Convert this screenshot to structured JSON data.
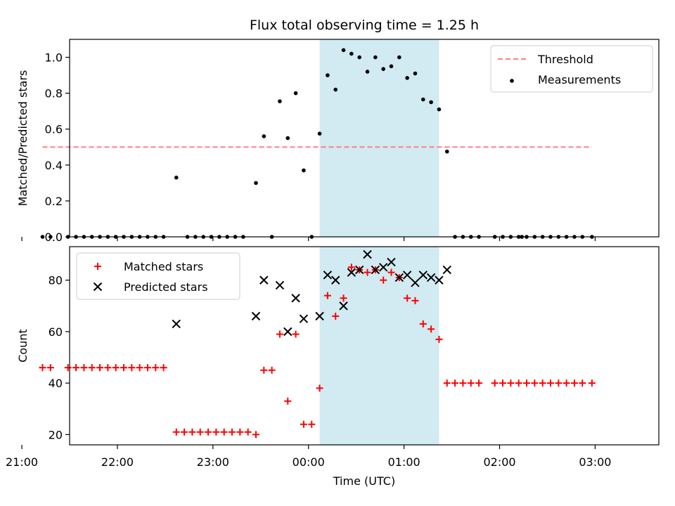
{
  "chart_data": {
    "title": "Flux total observing time = 1.25 h",
    "xlabel": "Time (UTC)",
    "x_tick_labels": [
      "21:00",
      "22:00",
      "23:00",
      "00:00",
      "01:00",
      "02:00",
      "03:00"
    ],
    "highlight_window": {
      "start": "00:07",
      "end": "01:22",
      "color": "#add8e6"
    },
    "panels": [
      {
        "type": "scatter",
        "ylabel": "Matched/Predicted stars",
        "ylim": [
          0,
          1.1
        ],
        "yticks": [
          "0.0",
          "0.2",
          "0.4",
          "0.6",
          "0.8",
          "1.0"
        ],
        "legend_position": "top-right",
        "series": [
          {
            "name": "Threshold",
            "style": "dashed-line",
            "color": "#ff8080",
            "y": 0.5,
            "x_start": "21:13",
            "x_end": "02:58"
          },
          {
            "name": "Measurements",
            "style": "dot",
            "color": "#000000",
            "points": [
              [
                "21:13",
                0
              ],
              [
                "21:18",
                0
              ],
              [
                "21:29",
                0
              ],
              [
                "21:34",
                0
              ],
              [
                "21:39",
                0
              ],
              [
                "21:44",
                0
              ],
              [
                "21:49",
                0
              ],
              [
                "21:54",
                0
              ],
              [
                "21:59",
                0
              ],
              [
                "22:04",
                0
              ],
              [
                "22:09",
                0
              ],
              [
                "22:14",
                0
              ],
              [
                "22:19",
                0
              ],
              [
                "22:24",
                0
              ],
              [
                "22:29",
                0
              ],
              [
                "22:37",
                0.33
              ],
              [
                "22:44",
                0
              ],
              [
                "22:49",
                0
              ],
              [
                "22:54",
                0
              ],
              [
                "22:59",
                0
              ],
              [
                "23:04",
                0
              ],
              [
                "23:09",
                0
              ],
              [
                "23:14",
                0
              ],
              [
                "23:19",
                0
              ],
              [
                "23:27",
                0.3
              ],
              [
                "23:32",
                0.56
              ],
              [
                "23:37",
                0
              ],
              [
                "23:42",
                0.755
              ],
              [
                "23:47",
                0.55
              ],
              [
                "23:52",
                0.8
              ],
              [
                "23:57",
                0.37
              ],
              [
                "00:02",
                0
              ],
              [
                "00:07",
                0.575
              ],
              [
                "00:12",
                0.9
              ],
              [
                "00:17",
                0.82
              ],
              [
                "00:22",
                1.04
              ],
              [
                "00:27",
                1.02
              ],
              [
                "00:32",
                1.0
              ],
              [
                "00:37",
                0.92
              ],
              [
                "00:42",
                1.0
              ],
              [
                "00:47",
                0.935
              ],
              [
                "00:52",
                0.95
              ],
              [
                "00:57",
                1.0
              ],
              [
                "01:02",
                0.885
              ],
              [
                "01:07",
                0.91
              ],
              [
                "01:12",
                0.765
              ],
              [
                "01:17",
                0.75
              ],
              [
                "01:22",
                0.71
              ],
              [
                "01:27",
                0.475
              ],
              [
                "01:32",
                0
              ],
              [
                "01:37",
                0
              ],
              [
                "01:42",
                0
              ],
              [
                "01:47",
                0
              ],
              [
                "01:57",
                0
              ],
              [
                "02:02",
                0
              ],
              [
                "02:07",
                0
              ],
              [
                "02:12",
                0
              ],
              [
                "02:14",
                0
              ],
              [
                "02:17",
                0
              ],
              [
                "02:22",
                0
              ],
              [
                "02:27",
                0
              ],
              [
                "02:32",
                0
              ],
              [
                "02:37",
                0
              ],
              [
                "02:42",
                0
              ],
              [
                "02:47",
                0
              ],
              [
                "02:52",
                0
              ],
              [
                "02:58",
                0
              ]
            ]
          }
        ]
      },
      {
        "type": "scatter",
        "ylabel": "Count",
        "ylim": [
          16,
          93
        ],
        "yticks": [
          "20",
          "40",
          "60",
          "80"
        ],
        "legend_position": "top-left",
        "series": [
          {
            "name": "Matched stars",
            "marker": "plus",
            "color": "#ff0000",
            "points": [
              [
                "21:13",
                46
              ],
              [
                "21:18",
                46
              ],
              [
                "21:29",
                46
              ],
              [
                "21:34",
                46
              ],
              [
                "21:39",
                46
              ],
              [
                "21:44",
                46
              ],
              [
                "21:49",
                46
              ],
              [
                "21:54",
                46
              ],
              [
                "21:59",
                46
              ],
              [
                "22:04",
                46
              ],
              [
                "22:09",
                46
              ],
              [
                "22:14",
                46
              ],
              [
                "22:19",
                46
              ],
              [
                "22:24",
                46
              ],
              [
                "22:29",
                46
              ],
              [
                "22:37",
                21
              ],
              [
                "22:42",
                21
              ],
              [
                "22:47",
                21
              ],
              [
                "22:52",
                21
              ],
              [
                "22:57",
                21
              ],
              [
                "23:02",
                21
              ],
              [
                "23:07",
                21
              ],
              [
                "23:12",
                21
              ],
              [
                "23:17",
                21
              ],
              [
                "23:22",
                21
              ],
              [
                "23:27",
                20
              ],
              [
                "23:32",
                45
              ],
              [
                "23:37",
                45
              ],
              [
                "23:42",
                59
              ],
              [
                "23:47",
                33
              ],
              [
                "23:52",
                59
              ],
              [
                "23:57",
                24
              ],
              [
                "00:02",
                24
              ],
              [
                "00:07",
                38
              ],
              [
                "00:12",
                74
              ],
              [
                "00:17",
                66
              ],
              [
                "00:22",
                73
              ],
              [
                "00:27",
                85
              ],
              [
                "00:32",
                84
              ],
              [
                "00:37",
                83
              ],
              [
                "00:42",
                84
              ],
              [
                "00:47",
                80
              ],
              [
                "00:52",
                83
              ],
              [
                "00:57",
                81
              ],
              [
                "01:02",
                73
              ],
              [
                "01:07",
                72
              ],
              [
                "01:12",
                63
              ],
              [
                "01:17",
                61
              ],
              [
                "01:22",
                57
              ],
              [
                "01:27",
                40
              ],
              [
                "01:32",
                40
              ],
              [
                "01:37",
                40
              ],
              [
                "01:42",
                40
              ],
              [
                "01:47",
                40
              ],
              [
                "01:57",
                40
              ],
              [
                "02:02",
                40
              ],
              [
                "02:07",
                40
              ],
              [
                "02:12",
                40
              ],
              [
                "02:17",
                40
              ],
              [
                "02:22",
                40
              ],
              [
                "02:27",
                40
              ],
              [
                "02:32",
                40
              ],
              [
                "02:37",
                40
              ],
              [
                "02:42",
                40
              ],
              [
                "02:47",
                40
              ],
              [
                "02:52",
                40
              ],
              [
                "02:58",
                40
              ]
            ]
          },
          {
            "name": "Predicted stars",
            "marker": "x",
            "color": "#000000",
            "points": [
              [
                "22:37",
                63
              ],
              [
                "23:27",
                66
              ],
              [
                "23:32",
                80
              ],
              [
                "23:42",
                78
              ],
              [
                "23:47",
                60
              ],
              [
                "23:52",
                73
              ],
              [
                "23:57",
                65
              ],
              [
                "00:07",
                66
              ],
              [
                "00:12",
                82
              ],
              [
                "00:17",
                80
              ],
              [
                "00:22",
                70
              ],
              [
                "00:27",
                83
              ],
              [
                "00:32",
                84
              ],
              [
                "00:37",
                90
              ],
              [
                "00:42",
                84
              ],
              [
                "00:47",
                85
              ],
              [
                "00:52",
                87
              ],
              [
                "00:57",
                81
              ],
              [
                "01:02",
                82
              ],
              [
                "01:07",
                79
              ],
              [
                "01:12",
                82
              ],
              [
                "01:17",
                81
              ],
              [
                "01:22",
                80
              ],
              [
                "01:27",
                84
              ]
            ]
          }
        ]
      }
    ]
  }
}
